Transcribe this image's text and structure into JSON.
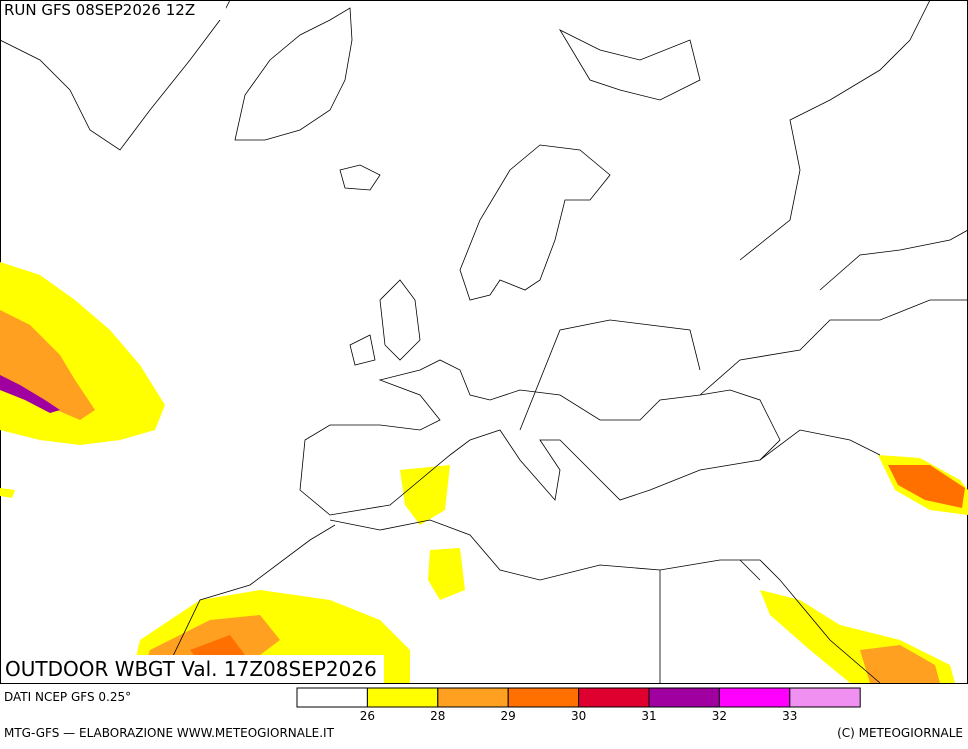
{
  "header": {
    "run": "RUN GFS 08SEP2026 12Z"
  },
  "map": {
    "title": "OUTDOOR WBGT Val. 17Z08SEP2026"
  },
  "legend": {
    "source": "DATI NCEP GFS 0.25°",
    "colors": [
      "#ffffff",
      "#ffff00",
      "#ffa020",
      "#ff7000",
      "#e00030",
      "#a000a0",
      "#ff00ff",
      "#f090f0"
    ],
    "ticks": [
      26,
      28,
      29,
      30,
      31,
      32,
      33
    ]
  },
  "footer": {
    "left": "MTG-GFS — ELABORAZIONE WWW.METEOGIORNALE.IT",
    "right": "(C) METEOGIORNALE"
  }
}
